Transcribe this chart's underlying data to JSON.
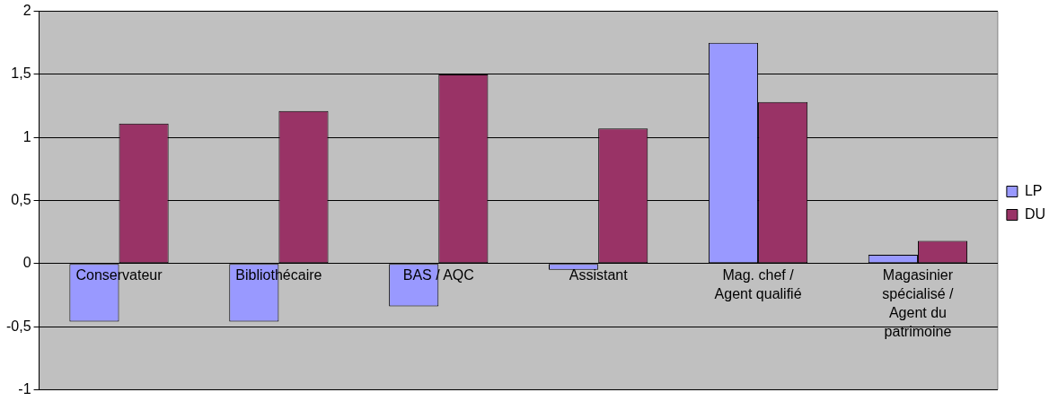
{
  "chart_data": {
    "type": "bar",
    "categories": [
      "Conservateur",
      "Bibliothécaire",
      "BAS / AQC",
      "Assistant",
      "Mag. chef / Agent qualifié",
      "Magasinier spécialisé / Agent du patrimoine"
    ],
    "series": [
      {
        "name": "LP",
        "color": "#9999ff",
        "values": [
          -0.46,
          -0.46,
          -0.34,
          -0.05,
          1.75,
          0.07
        ]
      },
      {
        "name": "DU",
        "color": "#993366",
        "values": [
          1.11,
          1.21,
          1.5,
          1.07,
          1.28,
          0.18
        ]
      }
    ],
    "ylim": [
      -1,
      2
    ],
    "yticks": [
      {
        "value": -1,
        "label": "-1"
      },
      {
        "value": -0.5,
        "label": "-0,5"
      },
      {
        "value": 0,
        "label": "0"
      },
      {
        "value": 0.5,
        "label": "0,5"
      },
      {
        "value": 1,
        "label": "1"
      },
      {
        "value": 1.5,
        "label": "1,5"
      },
      {
        "value": 2,
        "label": "2"
      }
    ],
    "grid": "y",
    "legend": "right"
  }
}
